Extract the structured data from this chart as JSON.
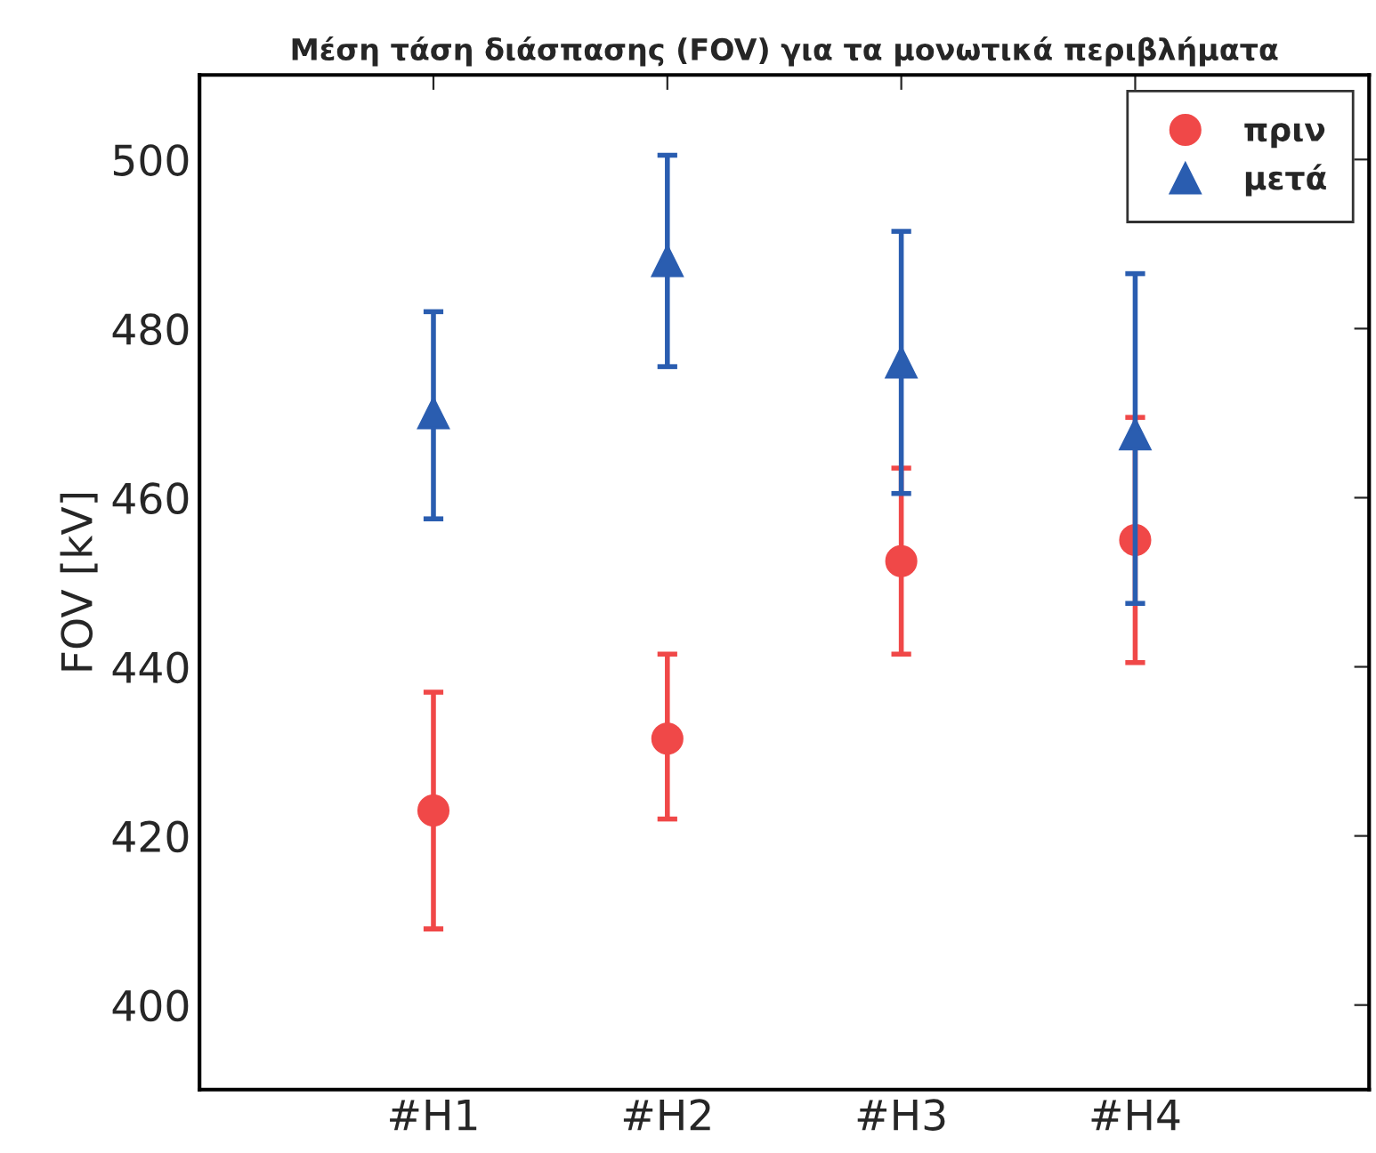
{
  "chart_data": {
    "type": "scatter",
    "title": "Μέση τάση διάσπασης (FOV) για τα μονωτικά περιβλήματα",
    "ylabel": "FOV [kV]",
    "categories": [
      "#H1",
      "#H2",
      "#H3",
      "#H4"
    ],
    "series": [
      {
        "name": "πριν",
        "color": "#f04848",
        "marker": "circle",
        "values": [
          423,
          431.5,
          452.5,
          455
        ],
        "errors": [
          [
            409,
            437
          ],
          [
            422,
            441.5
          ],
          [
            441.5,
            463.5
          ],
          [
            440.5,
            469.5
          ]
        ]
      },
      {
        "name": "μετά",
        "color": "#2a5db0",
        "marker": "triangle",
        "values": [
          470,
          488,
          476,
          467.5
        ],
        "errors": [
          [
            457.5,
            482
          ],
          [
            475.5,
            500.5
          ],
          [
            460.5,
            491.5
          ],
          [
            447.5,
            486.5
          ]
        ]
      }
    ],
    "ylim": [
      390,
      510
    ],
    "yticks": [
      400,
      420,
      440,
      460,
      480,
      500
    ],
    "grid": false,
    "legend": "top right"
  }
}
